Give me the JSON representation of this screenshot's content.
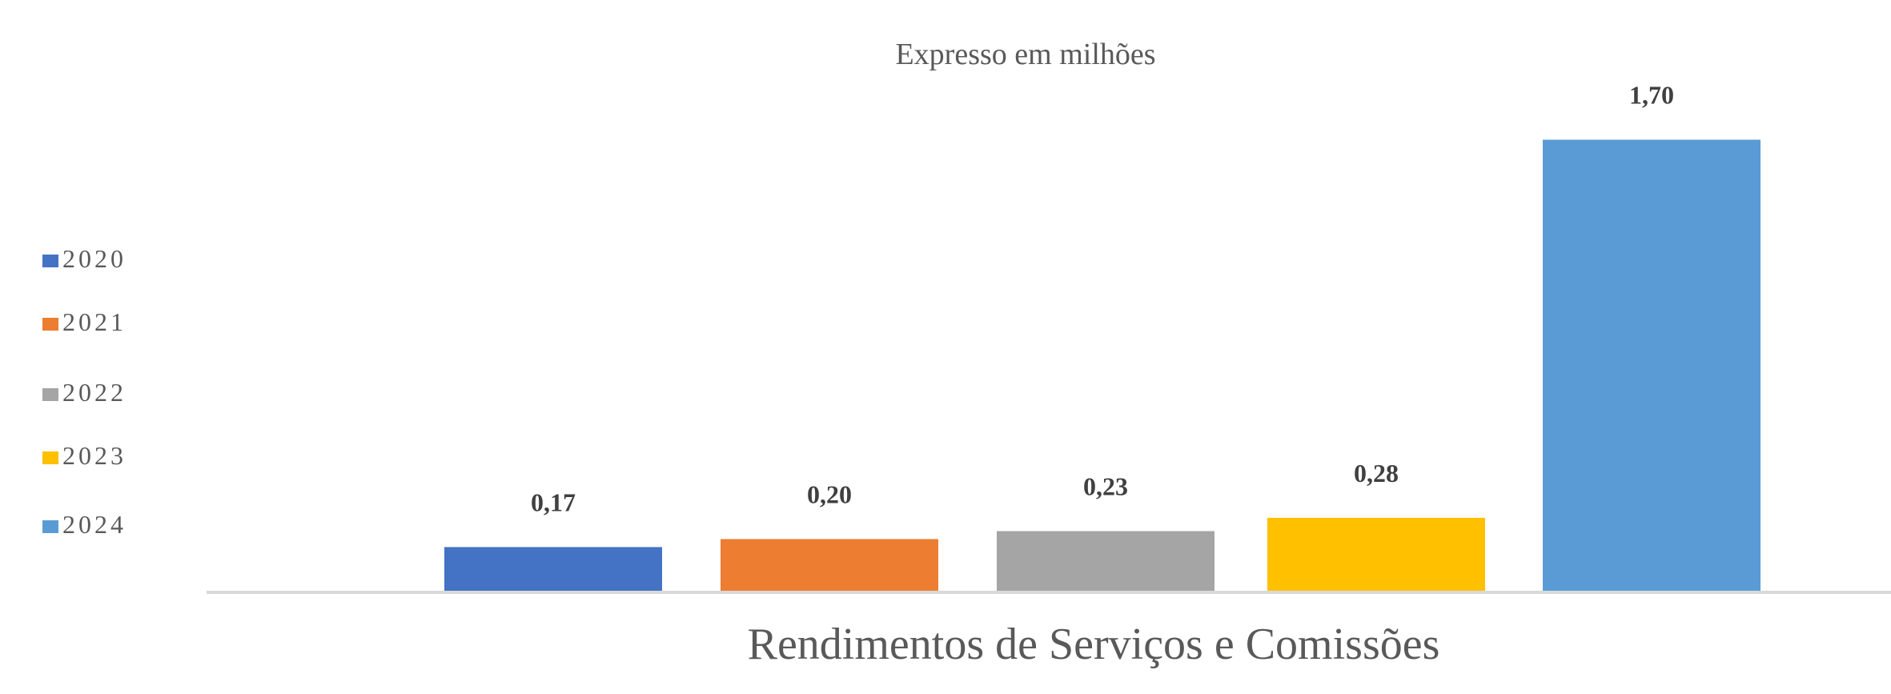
{
  "chart_data": {
    "type": "bar",
    "subtitle": "Expresso em milhões",
    "xlabel": "Rendimentos de Serviços e Comissões",
    "ylabel": "",
    "ylim": [
      0,
      1.9
    ],
    "grid": false,
    "legend_position": "left",
    "categories": [
      "Rendimentos de Serviços e Comissões"
    ],
    "series": [
      {
        "name": "2020",
        "values": [
          0.17
        ],
        "label": "0,17",
        "color": "#4472C4"
      },
      {
        "name": "2021",
        "values": [
          0.2
        ],
        "label": "0,20",
        "color": "#ED7D31"
      },
      {
        "name": "2022",
        "values": [
          0.23
        ],
        "label": "0,23",
        "color": "#A5A5A5"
      },
      {
        "name": "2023",
        "values": [
          0.28
        ],
        "label": "0,28",
        "color": "#FFC000"
      },
      {
        "name": "2024",
        "values": [
          1.7
        ],
        "label": "1,70",
        "color": "#5B9BD5"
      }
    ]
  },
  "colors": {
    "axis": "#D9D9D9"
  }
}
